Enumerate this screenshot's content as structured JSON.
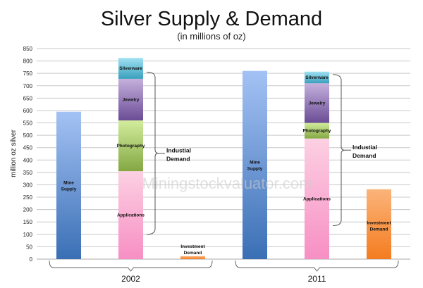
{
  "chart_data": {
    "type": "bar",
    "title": "Silver Supply & Demand",
    "subtitle": "(in millions of oz)",
    "ylabel": "million oz silver",
    "ylim": [
      0,
      850
    ],
    "yticks": [
      0,
      50,
      100,
      150,
      200,
      250,
      300,
      350,
      400,
      450,
      500,
      550,
      600,
      650,
      700,
      750,
      800,
      850
    ],
    "grid": true,
    "watermark": "Miningstockvaluator.com",
    "groups": [
      {
        "label": "2002",
        "bars": [
          {
            "name": "Mine Supply",
            "label": [
              "Mine",
              "Supply"
            ],
            "segments": [
              {
                "name": "Mine Supply",
                "value": 595,
                "color": "#4f81bd"
              }
            ]
          },
          {
            "name": "Industrial Demand",
            "segments": [
              {
                "name": "Applications",
                "value": 355,
                "color": "#f79ac8"
              },
              {
                "name": "Photography",
                "value": 205,
                "color": "#9bbb59"
              },
              {
                "name": "Jewelry",
                "value": 168,
                "color": "#8064a2"
              },
              {
                "name": "Silverware",
                "value": 84,
                "color": "#4bacc6"
              }
            ]
          },
          {
            "name": "Investment Demand",
            "label": [
              "Investment",
              "Demand"
            ],
            "segments": [
              {
                "name": "Investment Demand",
                "value": 12,
                "color": "#f79646"
              }
            ]
          }
        ],
        "brace": {
          "label": [
            "Industial",
            "Demand"
          ],
          "from": 100,
          "to": 755
        }
      },
      {
        "label": "2011",
        "bars": [
          {
            "name": "Mine Supply",
            "label": [
              "Mine",
              "Supply"
            ],
            "segments": [
              {
                "name": "Mine Supply",
                "value": 760,
                "color": "#4f81bd"
              }
            ]
          },
          {
            "name": "Industrial Demand",
            "segments": [
              {
                "name": "Applications",
                "value": 487,
                "color": "#f79ac8"
              },
              {
                "name": "Photography",
                "value": 63,
                "color": "#9bbb59"
              },
              {
                "name": "Jewelry",
                "value": 160,
                "color": "#8064a2"
              },
              {
                "name": "Silverware",
                "value": 47,
                "color": "#4bacc6"
              }
            ]
          },
          {
            "name": "Investment Demand",
            "label": [
              "Investment",
              "Demand"
            ],
            "segments": [
              {
                "name": "Investment Demand",
                "value": 282,
                "color": "#f79646"
              }
            ]
          }
        ],
        "brace": {
          "label": [
            "Industial",
            "Demand"
          ],
          "from": 135,
          "to": 745
        }
      }
    ]
  }
}
